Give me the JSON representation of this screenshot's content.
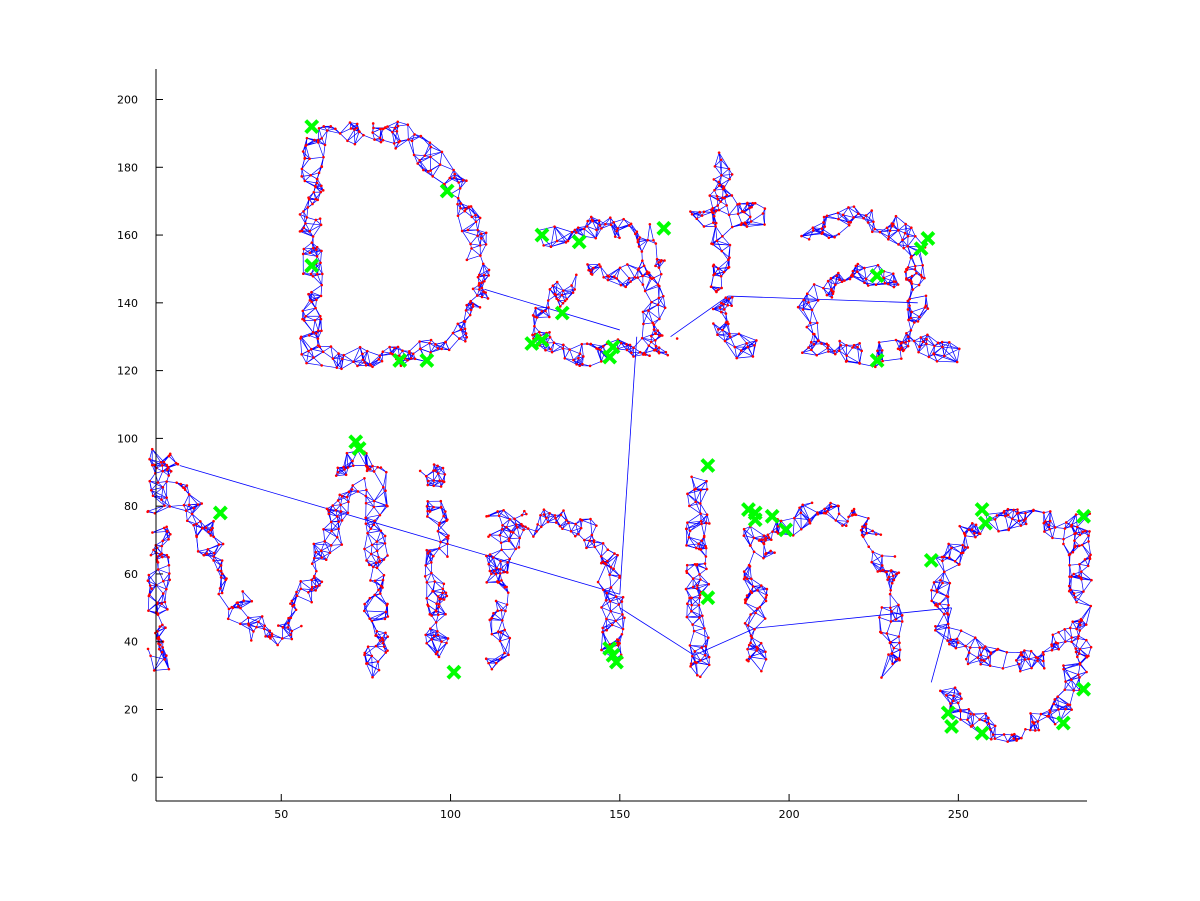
{
  "chart_data": {
    "type": "scatter",
    "title": "",
    "xlabel": "",
    "ylabel": "",
    "xlim": [
      13,
      288
    ],
    "ylim": [
      -7,
      209
    ],
    "xticks": [
      50,
      100,
      150,
      200,
      250
    ],
    "yticks": [
      0,
      20,
      40,
      60,
      80,
      100,
      120,
      140,
      160,
      180,
      200
    ],
    "grid": false,
    "legend": "none",
    "colors": {
      "edges": "#0000ff",
      "points": "#ff0000",
      "markers": "#00ff00",
      "axes": "#000000",
      "background": "#ffffff"
    },
    "text_shape": "Data Mining",
    "series": [
      {
        "role": "graph-edges",
        "style": "line",
        "note": "k-nearest-neighbour graph connecting the data points",
        "values": []
      },
      {
        "role": "data-points",
        "style": "dot",
        "note": "data points tracing the letters of the words",
        "values": []
      },
      {
        "role": "outliers",
        "style": "x-marker",
        "points": [
          [
            59,
            192
          ],
          [
            99,
            173
          ],
          [
            59,
            151
          ],
          [
            85,
            123
          ],
          [
            93,
            123
          ],
          [
            127,
            160
          ],
          [
            138,
            158
          ],
          [
            133,
            137
          ],
          [
            124,
            128
          ],
          [
            127,
            129
          ],
          [
            148,
            127
          ],
          [
            147,
            124
          ],
          [
            163,
            162
          ],
          [
            241,
            159
          ],
          [
            239,
            156
          ],
          [
            226,
            148
          ],
          [
            226,
            123
          ],
          [
            72,
            99
          ],
          [
            73,
            97
          ],
          [
            32,
            78
          ],
          [
            101,
            31
          ],
          [
            147,
            38
          ],
          [
            148,
            36
          ],
          [
            149,
            34
          ],
          [
            176,
            92
          ],
          [
            176,
            53
          ],
          [
            188,
            79
          ],
          [
            190,
            78
          ],
          [
            190,
            76
          ],
          [
            195,
            77
          ],
          [
            199,
            73
          ],
          [
            242,
            64
          ],
          [
            257,
            79
          ],
          [
            258,
            75
          ],
          [
            287,
            77
          ],
          [
            287,
            26
          ],
          [
            247,
            19
          ],
          [
            248,
            15
          ],
          [
            257,
            13
          ],
          [
            281,
            16
          ]
        ]
      }
    ]
  }
}
